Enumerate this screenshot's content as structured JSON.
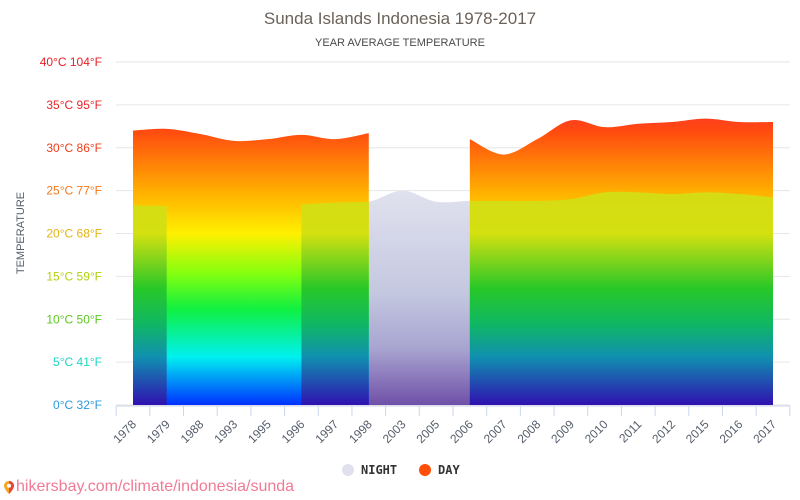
{
  "header": {
    "title": "Sunda Islands Indonesia 1978-2017",
    "subtitle": "YEAR AVERAGE TEMPERATURE"
  },
  "axis": {
    "y_title": "TEMPERATURE",
    "y_ticks": [
      {
        "label": "40°C 104°F",
        "value": 40,
        "color": "#e8202a"
      },
      {
        "label": "35°C 95°F",
        "value": 35,
        "color": "#e8262a"
      },
      {
        "label": "30°C 86°F",
        "value": 30,
        "color": "#f0401e"
      },
      {
        "label": "25°C 77°F",
        "value": 25,
        "color": "#f4781a"
      },
      {
        "label": "20°C 68°F",
        "value": 20,
        "color": "#e4b412"
      },
      {
        "label": "15°C 59°F",
        "value": 15,
        "color": "#b4d010"
      },
      {
        "label": "10°C 50°F",
        "value": 10,
        "color": "#5cc820"
      },
      {
        "label": "5°C 41°F",
        "value": 5,
        "color": "#1cd4c4"
      },
      {
        "label": "0°C 32°F",
        "value": 0,
        "color": "#2a9adc"
      }
    ]
  },
  "legend": {
    "night": {
      "label": "NIGHT",
      "color": "#e0e0ee"
    },
    "day": {
      "label": "DAY",
      "color": "#ff4d0a"
    }
  },
  "source": {
    "text": "hikersbay.com/climate/indonesia/sunda"
  },
  "chart_data": {
    "type": "area",
    "title": "Sunda Islands Indonesia 1978-2017",
    "subtitle": "YEAR AVERAGE TEMPERATURE",
    "xlabel": "",
    "ylabel": "TEMPERATURE",
    "ylim": [
      0,
      40
    ],
    "grid": true,
    "legend_position": "bottom",
    "categories": [
      "1978",
      "1979",
      "1988",
      "1993",
      "1995",
      "1996",
      "1997",
      "1998",
      "2003",
      "2005",
      "2006",
      "2007",
      "2008",
      "2009",
      "2010",
      "2011",
      "2012",
      "2015",
      "2016",
      "2017"
    ],
    "series": [
      {
        "name": "NIGHT",
        "unit": "°C",
        "values": [
          23.3,
          23.2,
          null,
          null,
          null,
          23.4,
          23.6,
          23.7,
          25.0,
          23.7,
          23.8,
          23.8,
          23.8,
          24.0,
          24.8,
          24.8,
          24.6,
          24.8,
          24.6,
          24.2
        ]
      },
      {
        "name": "DAY",
        "unit": "°C",
        "values": [
          32.0,
          32.2,
          31.6,
          30.8,
          31.0,
          31.5,
          31.0,
          31.7,
          null,
          null,
          31.0,
          29.2,
          31.0,
          33.2,
          32.4,
          32.8,
          33.0,
          33.4,
          33.0,
          33.0
        ]
      }
    ]
  }
}
